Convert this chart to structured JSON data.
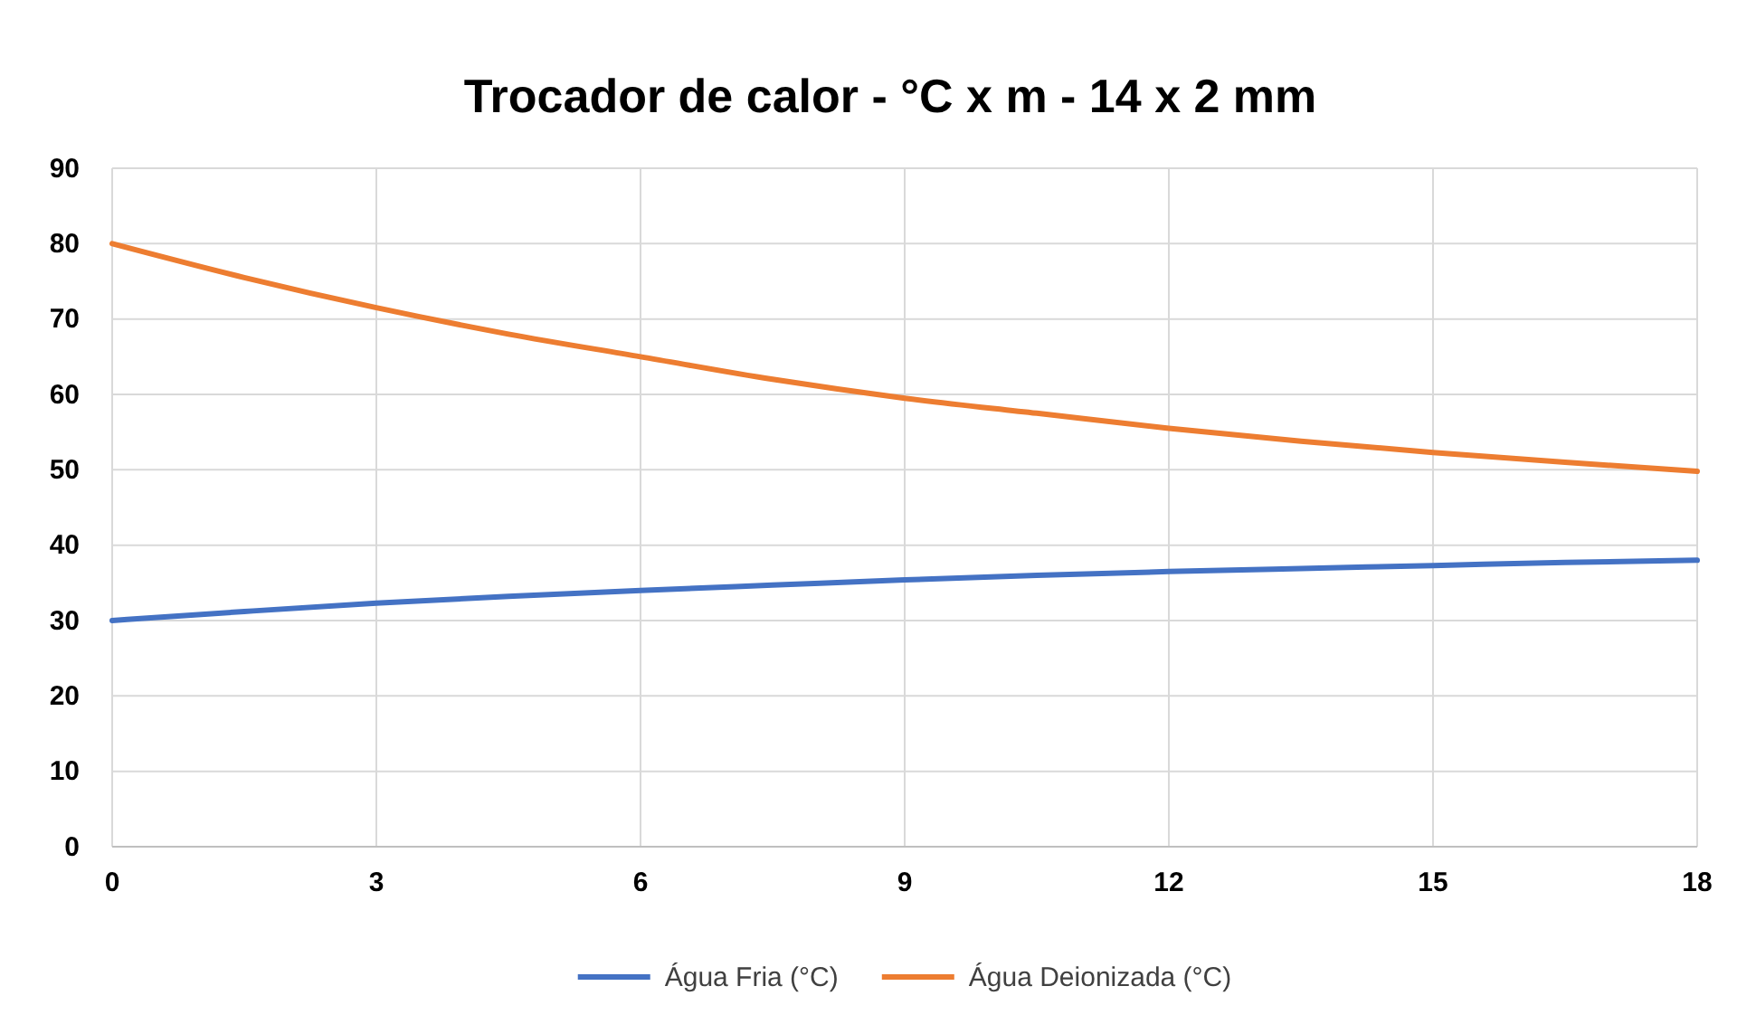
{
  "chart_data": {
    "type": "line",
    "title": "Trocador de calor - °C x m - 14 x 2 mm",
    "x": [
      0,
      1.5,
      3,
      4.5,
      6,
      7.5,
      9,
      10.5,
      12,
      13.5,
      15,
      16.5,
      18
    ],
    "series": [
      {
        "name": "Água Fria (°C)",
        "color": "#4472c4",
        "values": [
          30,
          31.2,
          32.3,
          33.2,
          34,
          34.7,
          35.4,
          36,
          36.5,
          36.9,
          37.3,
          37.7,
          38
        ]
      },
      {
        "name": "Água Deionizada (°C)",
        "color": "#ed7d31",
        "values": [
          80,
          75.5,
          71.5,
          68,
          65,
          62,
          59.5,
          57.5,
          55.5,
          53.8,
          52.3,
          51,
          49.8
        ]
      }
    ],
    "xlim": [
      0,
      18
    ],
    "xticks": [
      0,
      3,
      6,
      9,
      12,
      15,
      18
    ],
    "ylim": [
      0,
      90
    ],
    "yticks": [
      0,
      10,
      20,
      30,
      40,
      50,
      60,
      70,
      80,
      90
    ],
    "grid": true,
    "legend": "bottom",
    "marker": "none",
    "line_style": "solid"
  }
}
